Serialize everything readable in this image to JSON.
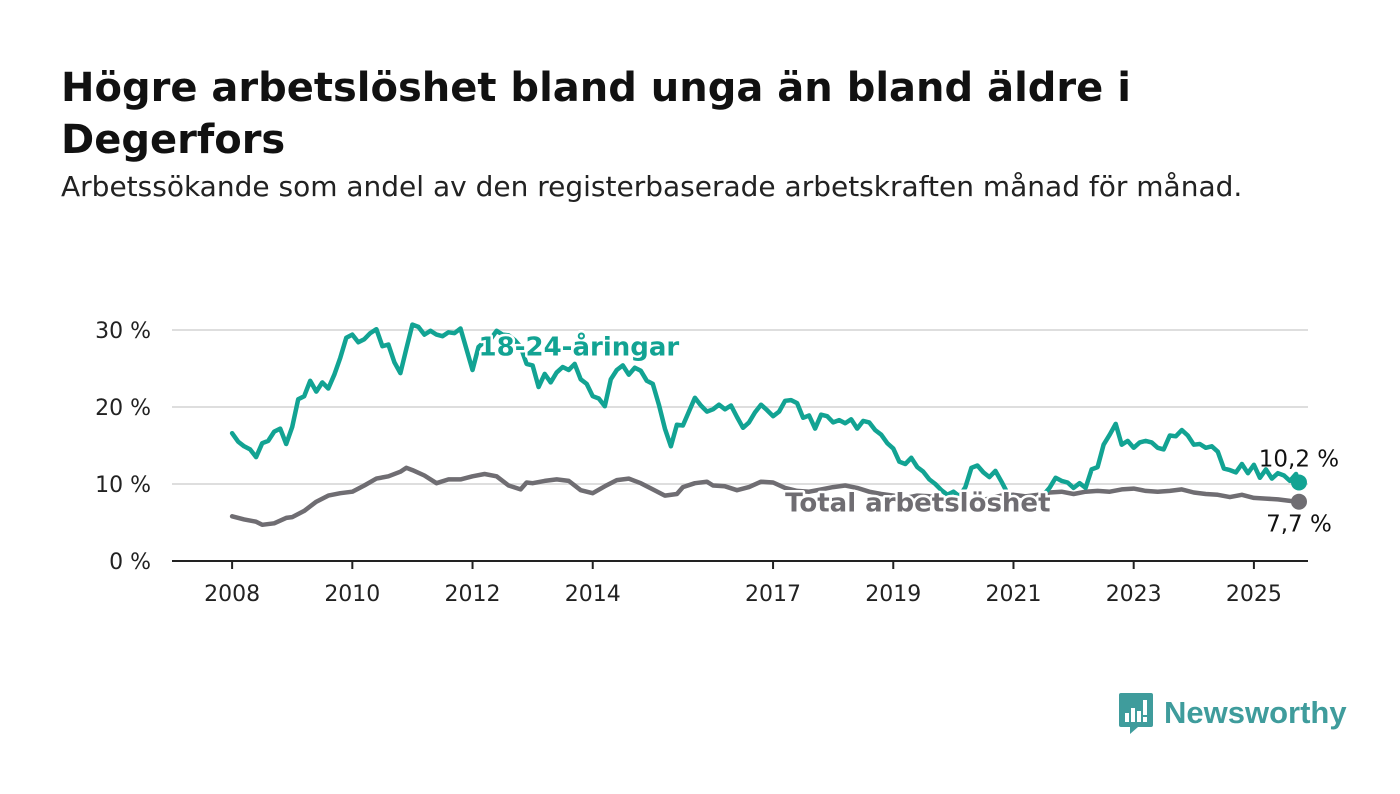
{
  "title": "Högre arbetslöshet bland unga än bland äldre i Degerfors",
  "subtitle": "Arbetssökande som andel av den registerbaserade arbetskraften månad för månad.",
  "brand": {
    "name": "Newsworthy",
    "color": "#3f9c9c"
  },
  "colors": {
    "youth": "#12a393",
    "total": "#6f6d72",
    "grid": "#dedede",
    "axis": "#222222",
    "text": "#222222"
  },
  "chart_data": {
    "type": "line",
    "title": "Högre arbetslöshet bland unga än bland äldre i Degerfors",
    "subtitle": "Arbetssökande som andel av den registerbaserade arbetskraften månad för månad.",
    "x_unit": "year",
    "xlim": [
      2007.0,
      2025.9
    ],
    "ylim": [
      0,
      30
    ],
    "y_ticks": [
      0,
      10,
      20,
      30
    ],
    "y_tick_labels": [
      "0 %",
      "10 %",
      "20 %",
      "30 %"
    ],
    "x_ticks": [
      2008,
      2010,
      2012,
      2014,
      2017,
      2019,
      2021,
      2023,
      2025
    ],
    "x_tick_labels": [
      "2008",
      "2010",
      "2012",
      "2014",
      "2017",
      "2019",
      "2021",
      "2023",
      "2025"
    ],
    "grid": true,
    "legend": "none (direct labels)",
    "series": [
      {
        "name": "18-24-åringar",
        "color": "#12a393",
        "end_label": "10,2 %",
        "points": [
          [
            2008.0,
            16.6
          ],
          [
            2008.1,
            15.5
          ],
          [
            2008.2,
            14.9
          ],
          [
            2008.3,
            14.5
          ],
          [
            2008.4,
            13.5
          ],
          [
            2008.5,
            15.3
          ],
          [
            2008.6,
            15.6
          ],
          [
            2008.7,
            16.8
          ],
          [
            2008.8,
            17.2
          ],
          [
            2008.9,
            15.2
          ],
          [
            2009.0,
            17.4
          ],
          [
            2009.1,
            21.0
          ],
          [
            2009.2,
            21.4
          ],
          [
            2009.3,
            23.4
          ],
          [
            2009.4,
            22.0
          ],
          [
            2009.5,
            23.2
          ],
          [
            2009.6,
            22.4
          ],
          [
            2009.7,
            24.2
          ],
          [
            2009.8,
            26.4
          ],
          [
            2009.9,
            29.0
          ],
          [
            2010.0,
            29.4
          ],
          [
            2010.1,
            28.4
          ],
          [
            2010.2,
            28.8
          ],
          [
            2010.3,
            29.6
          ],
          [
            2010.4,
            30.1
          ],
          [
            2010.5,
            27.9
          ],
          [
            2010.6,
            28.1
          ],
          [
            2010.7,
            25.8
          ],
          [
            2010.8,
            24.4
          ],
          [
            2010.9,
            27.6
          ],
          [
            2011.0,
            30.7
          ],
          [
            2011.1,
            30.4
          ],
          [
            2011.2,
            29.4
          ],
          [
            2011.3,
            29.9
          ],
          [
            2011.4,
            29.4
          ],
          [
            2011.5,
            29.2
          ],
          [
            2011.6,
            29.7
          ],
          [
            2011.7,
            29.6
          ],
          [
            2011.8,
            30.2
          ],
          [
            2011.9,
            27.5
          ],
          [
            2012.0,
            24.8
          ],
          [
            2012.1,
            27.8
          ],
          [
            2012.2,
            28.5
          ],
          [
            2012.3,
            28.8
          ],
          [
            2012.4,
            29.9
          ],
          [
            2012.5,
            29.4
          ],
          [
            2012.6,
            29.3
          ],
          [
            2012.7,
            28.7
          ],
          [
            2012.8,
            27.8
          ],
          [
            2012.9,
            25.6
          ],
          [
            2013.0,
            25.4
          ],
          [
            2013.1,
            22.6
          ],
          [
            2013.2,
            24.3
          ],
          [
            2013.3,
            23.2
          ],
          [
            2013.4,
            24.5
          ],
          [
            2013.5,
            25.2
          ],
          [
            2013.6,
            24.8
          ],
          [
            2013.7,
            25.6
          ],
          [
            2013.8,
            23.6
          ],
          [
            2013.9,
            23.0
          ],
          [
            2014.0,
            21.4
          ],
          [
            2014.1,
            21.1
          ],
          [
            2014.2,
            20.1
          ],
          [
            2014.3,
            23.6
          ],
          [
            2014.4,
            24.8
          ],
          [
            2014.5,
            25.4
          ],
          [
            2014.6,
            24.2
          ],
          [
            2014.7,
            25.1
          ],
          [
            2014.8,
            24.7
          ],
          [
            2014.9,
            23.4
          ],
          [
            2015.0,
            23.0
          ],
          [
            2015.1,
            20.3
          ],
          [
            2015.2,
            17.2
          ],
          [
            2015.3,
            14.9
          ],
          [
            2015.4,
            17.7
          ],
          [
            2015.5,
            17.6
          ],
          [
            2015.6,
            19.4
          ],
          [
            2015.7,
            21.2
          ],
          [
            2015.8,
            20.2
          ],
          [
            2015.9,
            19.4
          ],
          [
            2016.0,
            19.7
          ],
          [
            2016.1,
            20.3
          ],
          [
            2016.2,
            19.7
          ],
          [
            2016.3,
            20.2
          ],
          [
            2016.4,
            18.7
          ],
          [
            2016.5,
            17.3
          ],
          [
            2016.6,
            18.0
          ],
          [
            2016.7,
            19.3
          ],
          [
            2016.8,
            20.3
          ],
          [
            2016.9,
            19.6
          ],
          [
            2017.0,
            18.8
          ],
          [
            2017.1,
            19.4
          ],
          [
            2017.2,
            20.8
          ],
          [
            2017.3,
            20.9
          ],
          [
            2017.4,
            20.5
          ],
          [
            2017.5,
            18.6
          ],
          [
            2017.6,
            18.9
          ],
          [
            2017.7,
            17.2
          ],
          [
            2017.8,
            19.0
          ],
          [
            2017.9,
            18.8
          ],
          [
            2018.0,
            18.0
          ],
          [
            2018.1,
            18.3
          ],
          [
            2018.2,
            17.9
          ],
          [
            2018.3,
            18.4
          ],
          [
            2018.4,
            17.2
          ],
          [
            2018.5,
            18.2
          ],
          [
            2018.6,
            18.0
          ],
          [
            2018.7,
            17.0
          ],
          [
            2018.8,
            16.4
          ],
          [
            2018.9,
            15.3
          ],
          [
            2019.0,
            14.6
          ],
          [
            2019.1,
            12.9
          ],
          [
            2019.2,
            12.6
          ],
          [
            2019.3,
            13.4
          ],
          [
            2019.4,
            12.2
          ],
          [
            2019.5,
            11.6
          ],
          [
            2019.6,
            10.6
          ],
          [
            2019.7,
            10.0
          ],
          [
            2019.8,
            9.2
          ],
          [
            2019.9,
            8.6
          ],
          [
            2020.0,
            9.0
          ],
          [
            2020.1,
            8.4
          ],
          [
            2020.2,
            9.6
          ],
          [
            2020.3,
            12.1
          ],
          [
            2020.4,
            12.4
          ],
          [
            2020.5,
            11.5
          ],
          [
            2020.6,
            10.9
          ],
          [
            2020.7,
            11.7
          ],
          [
            2020.8,
            10.3
          ],
          [
            2020.9,
            8.8
          ],
          [
            2021.0,
            7.8
          ],
          [
            2021.1,
            7.2
          ],
          [
            2021.2,
            7.1
          ],
          [
            2021.3,
            7.4
          ],
          [
            2021.4,
            7.1
          ],
          [
            2021.5,
            8.6
          ],
          [
            2021.6,
            9.5
          ],
          [
            2021.7,
            10.8
          ],
          [
            2021.8,
            10.4
          ],
          [
            2021.9,
            10.2
          ],
          [
            2022.0,
            9.5
          ],
          [
            2022.1,
            10.1
          ],
          [
            2022.2,
            9.5
          ],
          [
            2022.3,
            11.9
          ],
          [
            2022.4,
            12.2
          ],
          [
            2022.5,
            15.1
          ],
          [
            2022.6,
            16.4
          ],
          [
            2022.7,
            17.8
          ],
          [
            2022.8,
            15.1
          ],
          [
            2022.9,
            15.6
          ],
          [
            2023.0,
            14.7
          ],
          [
            2023.1,
            15.4
          ],
          [
            2023.2,
            15.6
          ],
          [
            2023.3,
            15.4
          ],
          [
            2023.4,
            14.7
          ],
          [
            2023.5,
            14.5
          ],
          [
            2023.6,
            16.3
          ],
          [
            2023.7,
            16.2
          ],
          [
            2023.8,
            17.0
          ],
          [
            2023.9,
            16.3
          ],
          [
            2024.0,
            15.1
          ],
          [
            2024.1,
            15.2
          ],
          [
            2024.2,
            14.7
          ],
          [
            2024.3,
            14.9
          ],
          [
            2024.4,
            14.2
          ],
          [
            2024.5,
            12.0
          ],
          [
            2024.6,
            11.8
          ],
          [
            2024.7,
            11.5
          ],
          [
            2024.8,
            12.6
          ],
          [
            2024.9,
            11.4
          ],
          [
            2025.0,
            12.5
          ],
          [
            2025.1,
            10.8
          ],
          [
            2025.2,
            11.9
          ],
          [
            2025.3,
            10.7
          ],
          [
            2025.4,
            11.4
          ],
          [
            2025.5,
            11.1
          ],
          [
            2025.6,
            10.4
          ],
          [
            2025.7,
            11.3
          ],
          [
            2025.75,
            10.2
          ]
        ]
      },
      {
        "name": "Total arbetslöshet",
        "color": "#6f6d72",
        "end_label": "7,7 %",
        "points": [
          [
            2008.0,
            5.8
          ],
          [
            2008.2,
            5.4
          ],
          [
            2008.4,
            5.1
          ],
          [
            2008.5,
            4.7
          ],
          [
            2008.7,
            4.9
          ],
          [
            2008.9,
            5.6
          ],
          [
            2009.0,
            5.7
          ],
          [
            2009.2,
            6.5
          ],
          [
            2009.4,
            7.7
          ],
          [
            2009.6,
            8.5
          ],
          [
            2009.8,
            8.8
          ],
          [
            2010.0,
            9.0
          ],
          [
            2010.2,
            9.8
          ],
          [
            2010.4,
            10.7
          ],
          [
            2010.6,
            11.0
          ],
          [
            2010.8,
            11.6
          ],
          [
            2010.9,
            12.1
          ],
          [
            2011.0,
            11.8
          ],
          [
            2011.2,
            11.1
          ],
          [
            2011.4,
            10.1
          ],
          [
            2011.6,
            10.6
          ],
          [
            2011.8,
            10.6
          ],
          [
            2012.0,
            11.0
          ],
          [
            2012.2,
            11.3
          ],
          [
            2012.4,
            11.0
          ],
          [
            2012.6,
            9.8
          ],
          [
            2012.8,
            9.3
          ],
          [
            2012.9,
            10.2
          ],
          [
            2013.0,
            10.1
          ],
          [
            2013.2,
            10.4
          ],
          [
            2013.4,
            10.6
          ],
          [
            2013.6,
            10.4
          ],
          [
            2013.8,
            9.2
          ],
          [
            2014.0,
            8.8
          ],
          [
            2014.2,
            9.7
          ],
          [
            2014.4,
            10.5
          ],
          [
            2014.6,
            10.7
          ],
          [
            2014.8,
            10.1
          ],
          [
            2015.0,
            9.3
          ],
          [
            2015.2,
            8.5
          ],
          [
            2015.4,
            8.7
          ],
          [
            2015.5,
            9.6
          ],
          [
            2015.7,
            10.1
          ],
          [
            2015.9,
            10.3
          ],
          [
            2016.0,
            9.8
          ],
          [
            2016.2,
            9.7
          ],
          [
            2016.4,
            9.2
          ],
          [
            2016.6,
            9.6
          ],
          [
            2016.8,
            10.3
          ],
          [
            2017.0,
            10.2
          ],
          [
            2017.2,
            9.5
          ],
          [
            2017.4,
            9.1
          ],
          [
            2017.6,
            9.0
          ],
          [
            2017.8,
            9.3
          ],
          [
            2018.0,
            9.6
          ],
          [
            2018.2,
            9.8
          ],
          [
            2018.4,
            9.5
          ],
          [
            2018.6,
            9.0
          ],
          [
            2018.8,
            8.7
          ],
          [
            2019.0,
            8.5
          ],
          [
            2019.2,
            8.2
          ],
          [
            2019.4,
            8.5
          ],
          [
            2019.6,
            8.4
          ],
          [
            2019.8,
            8.0
          ],
          [
            2020.0,
            7.8
          ],
          [
            2020.2,
            7.5
          ],
          [
            2020.4,
            7.8
          ],
          [
            2020.6,
            8.1
          ],
          [
            2020.8,
            8.5
          ],
          [
            2021.0,
            8.6
          ],
          [
            2021.2,
            8.4
          ],
          [
            2021.4,
            8.6
          ],
          [
            2021.6,
            8.9
          ],
          [
            2021.8,
            9.0
          ],
          [
            2022.0,
            8.7
          ],
          [
            2022.2,
            9.0
          ],
          [
            2022.4,
            9.1
          ],
          [
            2022.6,
            9.0
          ],
          [
            2022.8,
            9.3
          ],
          [
            2023.0,
            9.4
          ],
          [
            2023.2,
            9.1
          ],
          [
            2023.4,
            9.0
          ],
          [
            2023.6,
            9.1
          ],
          [
            2023.8,
            9.3
          ],
          [
            2024.0,
            8.9
          ],
          [
            2024.2,
            8.7
          ],
          [
            2024.4,
            8.6
          ],
          [
            2024.6,
            8.3
          ],
          [
            2024.8,
            8.6
          ],
          [
            2025.0,
            8.2
          ],
          [
            2025.2,
            8.1
          ],
          [
            2025.4,
            8.0
          ],
          [
            2025.6,
            7.8
          ],
          [
            2025.75,
            7.7
          ]
        ]
      }
    ],
    "series_labels": [
      {
        "text": "18-24-åringar",
        "x": 2012.1,
        "y": 26.7
      },
      {
        "text": "Total arbetslöshet",
        "x": 2017.2,
        "y": 6.4
      }
    ]
  }
}
